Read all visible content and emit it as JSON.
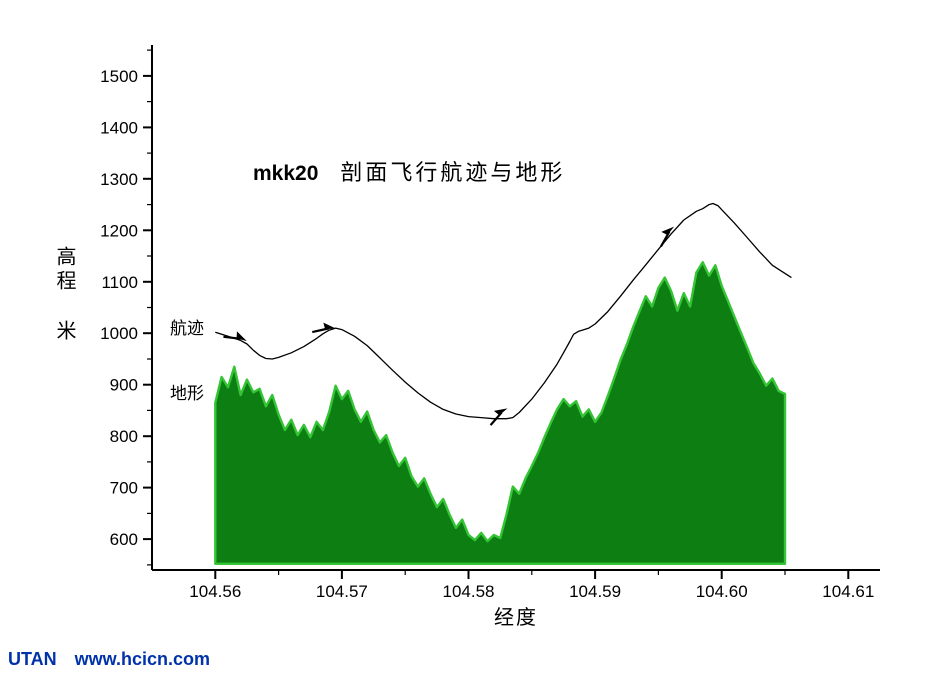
{
  "page": {
    "background": "#ffffff",
    "footer": {
      "brand": "UTAN",
      "url": "www.hcicn.com",
      "color": "#0033aa"
    }
  },
  "chart_data": {
    "type": "area+line",
    "title": {
      "prefix": "mkk20",
      "text": "剖面飞行航迹与地形"
    },
    "xlabel": "经度",
    "ylabel": "高程 米",
    "xlim": [
      104.555,
      104.6125
    ],
    "ylim": [
      540,
      1560
    ],
    "terrain_base": 552,
    "x_ticks": [
      104.56,
      104.57,
      104.58,
      104.59,
      104.6,
      104.61
    ],
    "x_tick_labels": [
      "104.56",
      "104.57",
      "104.58",
      "104.59",
      "104.60",
      "104.61"
    ],
    "x_minor_ticks": [
      104.565,
      104.575,
      104.585,
      104.595,
      104.605
    ],
    "y_ticks": [
      600,
      700,
      800,
      900,
      1000,
      1100,
      1200,
      1300,
      1400,
      1500
    ],
    "y_tick_labels": [
      "600",
      "700",
      "800",
      "900",
      "1000",
      "1100",
      "1200",
      "1300",
      "1400",
      "1500"
    ],
    "y_minor_ticks": [
      550,
      650,
      750,
      850,
      950,
      1050,
      1150,
      1250,
      1350,
      1450,
      1550
    ],
    "legend_inline": {
      "flight_label": "航迹",
      "terrain_label": "地形"
    },
    "colors": {
      "terrain_fill": "#0c7e12",
      "terrain_edge": "#35c435",
      "flight_line": "#000000",
      "axis": "#000000"
    },
    "series": [
      {
        "name": "地形",
        "type": "area",
        "points": [
          [
            104.56,
            865
          ],
          [
            104.5605,
            915
          ],
          [
            104.561,
            895
          ],
          [
            104.5615,
            935
          ],
          [
            104.562,
            880
          ],
          [
            104.5625,
            910
          ],
          [
            104.563,
            885
          ],
          [
            104.5635,
            892
          ],
          [
            104.564,
            858
          ],
          [
            104.5645,
            880
          ],
          [
            104.565,
            842
          ],
          [
            104.5655,
            812
          ],
          [
            104.566,
            832
          ],
          [
            104.5665,
            802
          ],
          [
            104.567,
            822
          ],
          [
            104.5675,
            798
          ],
          [
            104.568,
            828
          ],
          [
            104.5685,
            812
          ],
          [
            104.569,
            848
          ],
          [
            104.5695,
            898
          ],
          [
            104.57,
            872
          ],
          [
            104.5705,
            888
          ],
          [
            104.571,
            852
          ],
          [
            104.5715,
            828
          ],
          [
            104.572,
            848
          ],
          [
            104.5725,
            812
          ],
          [
            104.573,
            788
          ],
          [
            104.5735,
            802
          ],
          [
            104.574,
            768
          ],
          [
            104.5745,
            742
          ],
          [
            104.575,
            758
          ],
          [
            104.5755,
            722
          ],
          [
            104.576,
            702
          ],
          [
            104.5765,
            718
          ],
          [
            104.577,
            688
          ],
          [
            104.5775,
            662
          ],
          [
            104.578,
            678
          ],
          [
            104.5785,
            648
          ],
          [
            104.579,
            622
          ],
          [
            104.5795,
            638
          ],
          [
            104.58,
            608
          ],
          [
            104.5805,
            598
          ],
          [
            104.581,
            612
          ],
          [
            104.5815,
            596
          ],
          [
            104.582,
            608
          ],
          [
            104.5825,
            602
          ],
          [
            104.583,
            648
          ],
          [
            104.5835,
            702
          ],
          [
            104.584,
            688
          ],
          [
            104.5845,
            718
          ],
          [
            104.585,
            742
          ],
          [
            104.5855,
            768
          ],
          [
            104.586,
            798
          ],
          [
            104.5865,
            826
          ],
          [
            104.587,
            852
          ],
          [
            104.5875,
            872
          ],
          [
            104.588,
            858
          ],
          [
            104.5885,
            868
          ],
          [
            104.589,
            838
          ],
          [
            104.5895,
            852
          ],
          [
            104.59,
            828
          ],
          [
            104.5905,
            846
          ],
          [
            104.591,
            878
          ],
          [
            104.5915,
            912
          ],
          [
            104.592,
            948
          ],
          [
            104.5925,
            978
          ],
          [
            104.593,
            1012
          ],
          [
            104.5935,
            1042
          ],
          [
            104.594,
            1072
          ],
          [
            104.5945,
            1052
          ],
          [
            104.595,
            1088
          ],
          [
            104.5955,
            1108
          ],
          [
            104.596,
            1082
          ],
          [
            104.5965,
            1044
          ],
          [
            104.597,
            1078
          ],
          [
            104.5975,
            1052
          ],
          [
            104.598,
            1118
          ],
          [
            104.5985,
            1138
          ],
          [
            104.599,
            1112
          ],
          [
            104.5995,
            1132
          ],
          [
            104.6,
            1092
          ],
          [
            104.6005,
            1062
          ],
          [
            104.601,
            1032
          ],
          [
            104.6015,
            1002
          ],
          [
            104.602,
            972
          ],
          [
            104.6025,
            942
          ],
          [
            104.603,
            922
          ],
          [
            104.6035,
            898
          ],
          [
            104.604,
            912
          ],
          [
            104.6045,
            888
          ],
          [
            104.605,
            882
          ]
        ]
      },
      {
        "name": "航迹",
        "type": "line",
        "points": [
          [
            104.56,
            1002
          ],
          [
            104.561,
            994
          ],
          [
            104.562,
            986
          ],
          [
            104.5625,
            979
          ],
          [
            104.563,
            967
          ],
          [
            104.5635,
            957
          ],
          [
            104.564,
            951
          ],
          [
            104.5645,
            950
          ],
          [
            104.565,
            953
          ],
          [
            104.566,
            962
          ],
          [
            104.567,
            974
          ],
          [
            104.568,
            990
          ],
          [
            104.5685,
            999
          ],
          [
            104.569,
            1006
          ],
          [
            104.5695,
            1010
          ],
          [
            104.57,
            1007
          ],
          [
            104.571,
            994
          ],
          [
            104.572,
            976
          ],
          [
            104.573,
            952
          ],
          [
            104.574,
            928
          ],
          [
            104.575,
            905
          ],
          [
            104.576,
            884
          ],
          [
            104.577,
            866
          ],
          [
            104.578,
            852
          ],
          [
            104.579,
            843
          ],
          [
            104.58,
            838
          ],
          [
            104.581,
            836
          ],
          [
            104.582,
            834
          ],
          [
            104.583,
            834
          ],
          [
            104.5835,
            836
          ],
          [
            104.584,
            846
          ],
          [
            104.585,
            872
          ],
          [
            104.586,
            904
          ],
          [
            104.587,
            940
          ],
          [
            104.5875,
            962
          ],
          [
            104.588,
            984
          ],
          [
            104.5883,
            998
          ],
          [
            104.5887,
            1004
          ],
          [
            104.589,
            1006
          ],
          [
            104.5895,
            1010
          ],
          [
            104.59,
            1018
          ],
          [
            104.591,
            1042
          ],
          [
            104.592,
            1072
          ],
          [
            104.593,
            1103
          ],
          [
            104.594,
            1133
          ],
          [
            104.595,
            1163
          ],
          [
            104.596,
            1193
          ],
          [
            104.597,
            1220
          ],
          [
            104.598,
            1237
          ],
          [
            104.5985,
            1242
          ],
          [
            104.599,
            1250
          ],
          [
            104.5993,
            1252
          ],
          [
            104.5997,
            1248
          ],
          [
            104.6,
            1240
          ],
          [
            104.601,
            1214
          ],
          [
            104.602,
            1186
          ],
          [
            104.603,
            1158
          ],
          [
            104.604,
            1132
          ],
          [
            104.6055,
            1108
          ]
        ]
      }
    ],
    "arrows": [
      {
        "x": 104.5622,
        "y": 988,
        "angle": 25
      },
      {
        "x": 104.5692,
        "y": 1010,
        "angle": 6
      },
      {
        "x": 104.5828,
        "y": 850,
        "angle": -30
      },
      {
        "x": 104.596,
        "y": 1202,
        "angle": -42
      }
    ]
  }
}
